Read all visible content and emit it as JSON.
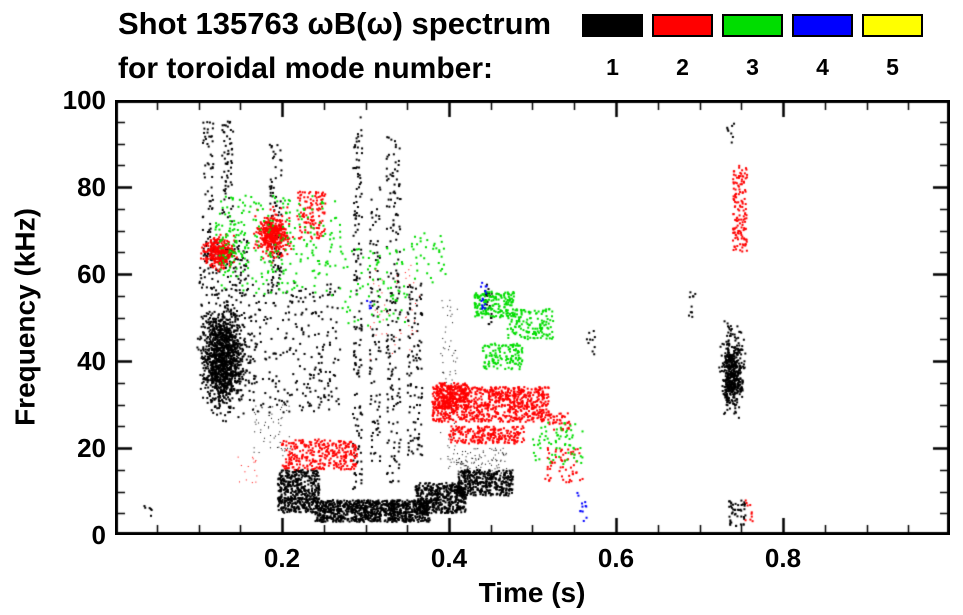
{
  "title": {
    "line1": "Shot 135763 ωB(ω) spectrum",
    "line2": "for toroidal mode number:"
  },
  "chart_data": {
    "type": "scatter",
    "title": "Shot 135763 ωB(ω) spectrum for toroidal mode number 1-5",
    "xlabel": "Time (s)",
    "ylabel": "Frequency (kHz)",
    "xlim": [
      0.0,
      1.0
    ],
    "ylim": [
      0,
      100
    ],
    "grid": false,
    "legend_position": "top-right",
    "x_ticks": [
      {
        "v": 0.2,
        "label": "0.2"
      },
      {
        "v": 0.4,
        "label": "0.4"
      },
      {
        "v": 0.6,
        "label": "0.6"
      },
      {
        "v": 0.8,
        "label": "0.8"
      }
    ],
    "y_ticks": [
      {
        "v": 0,
        "label": "0"
      },
      {
        "v": 20,
        "label": "20"
      },
      {
        "v": 40,
        "label": "40"
      },
      {
        "v": 60,
        "label": "60"
      },
      {
        "v": 80,
        "label": "80"
      },
      {
        "v": 100,
        "label": "100"
      }
    ],
    "x_minor_step": 0.05,
    "y_minor_step": 5,
    "series": [
      {
        "name": "toroidal mode n=1",
        "label": "1",
        "color": "#000000",
        "clusters": [
          {
            "t": [
              0.095,
              0.165
            ],
            "f": [
              25,
              58
            ],
            "n": 1300,
            "size": 2,
            "mode": "gauss"
          },
          {
            "t": [
              0.105,
              0.118
            ],
            "f": [
              60,
              95
            ],
            "n": 70,
            "size": 2
          },
          {
            "t": [
              0.128,
              0.142
            ],
            "f": [
              72,
              96
            ],
            "n": 60,
            "size": 2
          },
          {
            "t": [
              0.1,
              0.16
            ],
            "f": [
              55,
              68
            ],
            "n": 120,
            "size": 2
          },
          {
            "t": [
              0.185,
              0.2
            ],
            "f": [
              55,
              90
            ],
            "n": 90,
            "size": 2
          },
          {
            "t": [
              0.16,
              0.27
            ],
            "f": [
              28,
              58
            ],
            "n": 260,
            "size": 2
          },
          {
            "t": [
              0.165,
              0.21
            ],
            "f": [
              18,
              30
            ],
            "n": 60,
            "size": 1
          },
          {
            "t": [
              0.285,
              0.296
            ],
            "f": [
              10,
              97
            ],
            "n": 150,
            "size": 2
          },
          {
            "t": [
              0.305,
              0.318
            ],
            "f": [
              15,
              80
            ],
            "n": 90,
            "size": 2
          },
          {
            "t": [
              0.325,
              0.342
            ],
            "f": [
              12,
              92
            ],
            "n": 170,
            "size": 2
          },
          {
            "t": [
              0.35,
              0.368
            ],
            "f": [
              18,
              58
            ],
            "n": 110,
            "size": 2
          },
          {
            "t": [
              0.195,
              0.245
            ],
            "f": [
              5,
              15
            ],
            "n": 480,
            "size": 2
          },
          {
            "t": [
              0.24,
              0.335
            ],
            "f": [
              3,
              8
            ],
            "n": 650,
            "size": 2
          },
          {
            "t": [
              0.33,
              0.377
            ],
            "f": [
              3,
              8
            ],
            "n": 300,
            "size": 2
          },
          {
            "t": [
              0.36,
              0.42
            ],
            "f": [
              5,
              12
            ],
            "n": 460,
            "size": 2
          },
          {
            "t": [
              0.41,
              0.477
            ],
            "f": [
              9,
              15
            ],
            "n": 400,
            "size": 2
          },
          {
            "t": [
              0.39,
              0.41
            ],
            "f": [
              15,
              55
            ],
            "n": 90,
            "size": 1
          },
          {
            "t": [
              0.41,
              0.47
            ],
            "f": [
              14,
              20
            ],
            "n": 110,
            "size": 1
          },
          {
            "t": [
              0.443,
              0.452
            ],
            "f": [
              48,
              58
            ],
            "n": 22,
            "size": 2
          },
          {
            "t": [
              0.722,
              0.757
            ],
            "f": [
              25,
              50
            ],
            "n": 500,
            "size": 2,
            "mode": "gauss"
          },
          {
            "t": [
              0.735,
              0.755
            ],
            "f": [
              2,
              8
            ],
            "n": 45,
            "size": 2
          },
          {
            "t": [
              0.733,
              0.742
            ],
            "f": [
              90,
              95
            ],
            "n": 8,
            "size": 2
          },
          {
            "t": [
              0.035,
              0.045
            ],
            "f": [
              4,
              7
            ],
            "n": 6,
            "size": 2
          },
          {
            "t": [
              0.565,
              0.575
            ],
            "f": [
              40,
              48
            ],
            "n": 10,
            "size": 2
          },
          {
            "t": [
              0.685,
              0.697
            ],
            "f": [
              50,
              57
            ],
            "n": 10,
            "size": 2
          }
        ]
      },
      {
        "name": "toroidal mode n=2",
        "label": "2",
        "color": "#ff0000",
        "clusters": [
          {
            "t": [
              0.1,
              0.15
            ],
            "f": [
              60,
              70
            ],
            "n": 300,
            "size": 2,
            "mode": "gauss"
          },
          {
            "t": [
              0.163,
              0.215
            ],
            "f": [
              62,
              76
            ],
            "n": 420,
            "size": 2,
            "mode": "gauss"
          },
          {
            "t": [
              0.218,
              0.252
            ],
            "f": [
              68,
              79
            ],
            "n": 120,
            "size": 2
          },
          {
            "t": [
              0.2,
              0.29
            ],
            "f": [
              15,
              22
            ],
            "n": 320,
            "size": 2
          },
          {
            "t": [
              0.3,
              0.37
            ],
            "f": [
              40,
              62
            ],
            "n": 50,
            "size": 1
          },
          {
            "t": [
              0.38,
              0.52
            ],
            "f": [
              26,
              34
            ],
            "n": 850,
            "size": 2
          },
          {
            "t": [
              0.385,
              0.425
            ],
            "f": [
              29,
              35
            ],
            "n": 220,
            "size": 2
          },
          {
            "t": [
              0.4,
              0.49
            ],
            "f": [
              21,
              25
            ],
            "n": 230,
            "size": 2
          },
          {
            "t": [
              0.52,
              0.545
            ],
            "f": [
              24,
              28
            ],
            "n": 40,
            "size": 2
          },
          {
            "t": [
              0.515,
              0.56
            ],
            "f": [
              12,
              20
            ],
            "n": 60,
            "size": 2
          },
          {
            "t": [
              0.74,
              0.757
            ],
            "f": [
              65,
              85
            ],
            "n": 140,
            "size": 2
          },
          {
            "t": [
              0.755,
              0.765
            ],
            "f": [
              3,
              8
            ],
            "n": 10,
            "size": 2
          },
          {
            "t": [
              0.145,
              0.17
            ],
            "f": [
              12,
              18
            ],
            "n": 15,
            "size": 1
          }
        ]
      },
      {
        "name": "toroidal mode n=3",
        "label": "3",
        "color": "#00dd00",
        "clusters": [
          {
            "t": [
              0.125,
              0.27
            ],
            "f": [
              55,
              78
            ],
            "n": 240,
            "size": 2
          },
          {
            "t": [
              0.12,
              0.16
            ],
            "f": [
              60,
              72
            ],
            "n": 60,
            "size": 2
          },
          {
            "t": [
              0.27,
              0.35
            ],
            "f": [
              48,
              66
            ],
            "n": 80,
            "size": 2
          },
          {
            "t": [
              0.355,
              0.4
            ],
            "f": [
              58,
              70
            ],
            "n": 35,
            "size": 2
          },
          {
            "t": [
              0.43,
              0.478
            ],
            "f": [
              50,
              56
            ],
            "n": 170,
            "size": 2
          },
          {
            "t": [
              0.47,
              0.525
            ],
            "f": [
              45,
              52
            ],
            "n": 150,
            "size": 2
          },
          {
            "t": [
              0.44,
              0.488
            ],
            "f": [
              38,
              44
            ],
            "n": 130,
            "size": 2
          },
          {
            "t": [
              0.5,
              0.56
            ],
            "f": [
              16,
              26
            ],
            "n": 70,
            "size": 2
          }
        ]
      },
      {
        "name": "toroidal mode n=4",
        "label": "4",
        "color": "#0000ff",
        "clusters": [
          {
            "t": [
              0.437,
              0.447
            ],
            "f": [
              52,
              58
            ],
            "n": 16,
            "size": 2
          },
          {
            "t": [
              0.553,
              0.565
            ],
            "f": [
              3,
              10
            ],
            "n": 12,
            "size": 2
          },
          {
            "t": [
              0.3,
              0.308
            ],
            "f": [
              52,
              56
            ],
            "n": 5,
            "size": 2
          }
        ]
      },
      {
        "name": "toroidal mode n=5",
        "label": "5",
        "color": "#ffff00",
        "clusters": []
      }
    ]
  }
}
